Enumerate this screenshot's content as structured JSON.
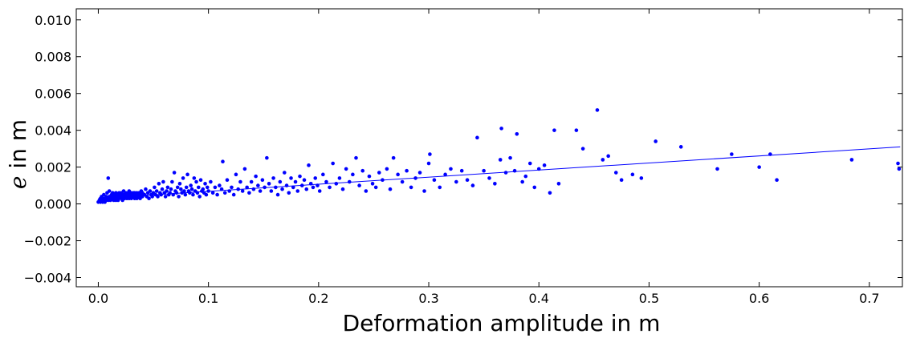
{
  "chart_data": {
    "type": "scatter",
    "title": "",
    "xlabel": "Deformation amplitude in m",
    "ylabel_var": "e",
    "ylabel_rest": " in m",
    "xlim": [
      -0.02,
      0.73
    ],
    "ylim": [
      -0.0045,
      0.0106
    ],
    "xticks": [
      0.0,
      0.1,
      0.2,
      0.3,
      0.4,
      0.5,
      0.6,
      0.7
    ],
    "xtick_labels": [
      "0.0",
      "0.1",
      "0.2",
      "0.3",
      "0.4",
      "0.5",
      "0.6",
      "0.7"
    ],
    "yticks": [
      -0.004,
      -0.002,
      0.0,
      0.002,
      0.004,
      0.006,
      0.008,
      0.01
    ],
    "ytick_labels": [
      "−0.004",
      "−0.002",
      "0.000",
      "0.002",
      "0.004",
      "0.006",
      "0.008",
      "0.010"
    ],
    "grid": false,
    "point_color": "#0000ff",
    "line_color": "#0000ff",
    "series": [
      {
        "kind": "points",
        "points": [
          [
            0.0,
            0.0001
          ],
          [
            0.001,
            0.0002
          ],
          [
            0.002,
            0.0003
          ],
          [
            0.002,
            0.0001
          ],
          [
            0.003,
            0.0002
          ],
          [
            0.003,
            0.0004
          ],
          [
            0.004,
            0.0001
          ],
          [
            0.004,
            0.0003
          ],
          [
            0.005,
            0.0002
          ],
          [
            0.005,
            0.0005
          ],
          [
            0.006,
            0.0001
          ],
          [
            0.006,
            0.0003
          ],
          [
            0.007,
            0.0004
          ],
          [
            0.007,
            0.0002
          ],
          [
            0.008,
            0.0006
          ],
          [
            0.008,
            0.0003
          ],
          [
            0.009,
            0.0002
          ],
          [
            0.009,
            0.0014
          ],
          [
            0.01,
            0.0004
          ],
          [
            0.01,
            0.0007
          ],
          [
            0.011,
            0.0003
          ],
          [
            0.011,
            0.0002
          ],
          [
            0.012,
            0.0005
          ],
          [
            0.012,
            0.0003
          ],
          [
            0.013,
            0.0004
          ],
          [
            0.013,
            0.0006
          ],
          [
            0.014,
            0.0002
          ],
          [
            0.014,
            0.0003
          ],
          [
            0.015,
            0.0005
          ],
          [
            0.015,
            0.0004
          ],
          [
            0.016,
            0.0002
          ],
          [
            0.016,
            0.0006
          ],
          [
            0.017,
            0.0003
          ],
          [
            0.017,
            0.0005
          ],
          [
            0.018,
            0.0004
          ],
          [
            0.018,
            0.0002
          ],
          [
            0.019,
            0.0006
          ],
          [
            0.019,
            0.0003
          ],
          [
            0.02,
            0.0004
          ],
          [
            0.02,
            0.0005
          ],
          [
            0.021,
            0.0003
          ],
          [
            0.021,
            0.0006
          ],
          [
            0.022,
            0.0004
          ],
          [
            0.022,
            0.0002
          ],
          [
            0.023,
            0.0005
          ],
          [
            0.023,
            0.0007
          ],
          [
            0.024,
            0.0003
          ],
          [
            0.024,
            0.0004
          ],
          [
            0.025,
            0.0006
          ],
          [
            0.025,
            0.0005
          ],
          [
            0.026,
            0.0003
          ],
          [
            0.026,
            0.0004
          ],
          [
            0.027,
            0.0006
          ],
          [
            0.027,
            0.0005
          ],
          [
            0.028,
            0.0003
          ],
          [
            0.028,
            0.0007
          ],
          [
            0.029,
            0.0004
          ],
          [
            0.029,
            0.0005
          ],
          [
            0.03,
            0.0006
          ],
          [
            0.03,
            0.0003
          ],
          [
            0.031,
            0.0004
          ],
          [
            0.031,
            0.0005
          ],
          [
            0.032,
            0.0006
          ],
          [
            0.032,
            0.0004
          ],
          [
            0.033,
            0.0003
          ],
          [
            0.033,
            0.0006
          ],
          [
            0.034,
            0.0005
          ],
          [
            0.034,
            0.0004
          ],
          [
            0.035,
            0.0006
          ],
          [
            0.035,
            0.0003
          ],
          [
            0.036,
            0.0004
          ],
          [
            0.036,
            0.0005
          ],
          [
            0.037,
            0.0006
          ],
          [
            0.037,
            0.0004
          ],
          [
            0.038,
            0.0005
          ],
          [
            0.038,
            0.0003
          ],
          [
            0.039,
            0.0007
          ],
          [
            0.039,
            0.0005
          ],
          [
            0.04,
            0.0004
          ],
          [
            0.04,
            0.0006
          ],
          [
            0.042,
            0.0005
          ],
          [
            0.043,
            0.0008
          ],
          [
            0.044,
            0.0004
          ],
          [
            0.045,
            0.0006
          ],
          [
            0.046,
            0.0003
          ],
          [
            0.047,
            0.0007
          ],
          [
            0.048,
            0.0005
          ],
          [
            0.049,
            0.0004
          ],
          [
            0.05,
            0.0006
          ],
          [
            0.051,
            0.0009
          ],
          [
            0.052,
            0.0005
          ],
          [
            0.053,
            0.0007
          ],
          [
            0.054,
            0.0004
          ],
          [
            0.055,
            0.0011
          ],
          [
            0.056,
            0.0006
          ],
          [
            0.057,
            0.0005
          ],
          [
            0.058,
            0.0008
          ],
          [
            0.059,
            0.0012
          ],
          [
            0.06,
            0.0006
          ],
          [
            0.061,
            0.0004
          ],
          [
            0.062,
            0.0007
          ],
          [
            0.063,
            0.0009
          ],
          [
            0.064,
            0.0005
          ],
          [
            0.065,
            0.0006
          ],
          [
            0.066,
            0.0008
          ],
          [
            0.067,
            0.0012
          ],
          [
            0.068,
            0.0005
          ],
          [
            0.069,
            0.0017
          ],
          [
            0.07,
            0.0007
          ],
          [
            0.071,
            0.0006
          ],
          [
            0.072,
            0.0009
          ],
          [
            0.073,
            0.0004
          ],
          [
            0.074,
            0.0011
          ],
          [
            0.075,
            0.0008
          ],
          [
            0.076,
            0.0006
          ],
          [
            0.077,
            0.0014
          ],
          [
            0.078,
            0.0007
          ],
          [
            0.079,
            0.0005
          ],
          [
            0.08,
            0.0009
          ],
          [
            0.081,
            0.0016
          ],
          [
            0.082,
            0.0007
          ],
          [
            0.083,
            0.0006
          ],
          [
            0.084,
            0.001
          ],
          [
            0.085,
            0.0008
          ],
          [
            0.086,
            0.0005
          ],
          [
            0.087,
            0.0014
          ],
          [
            0.088,
            0.0007
          ],
          [
            0.089,
            0.0012
          ],
          [
            0.09,
            0.0006
          ],
          [
            0.091,
            0.0009
          ],
          [
            0.092,
            0.0004
          ],
          [
            0.093,
            0.0013
          ],
          [
            0.094,
            0.0007
          ],
          [
            0.095,
            0.0008
          ],
          [
            0.096,
            0.0006
          ],
          [
            0.097,
            0.0011
          ],
          [
            0.098,
            0.0005
          ],
          [
            0.099,
            0.0009
          ],
          [
            0.1,
            0.0007
          ],
          [
            0.102,
            0.0012
          ],
          [
            0.104,
            0.0006
          ],
          [
            0.106,
            0.0009
          ],
          [
            0.108,
            0.0005
          ],
          [
            0.11,
            0.001
          ],
          [
            0.112,
            0.0008
          ],
          [
            0.113,
            0.0023
          ],
          [
            0.115,
            0.0006
          ],
          [
            0.117,
            0.0013
          ],
          [
            0.119,
            0.0007
          ],
          [
            0.121,
            0.0009
          ],
          [
            0.123,
            0.0005
          ],
          [
            0.125,
            0.0016
          ],
          [
            0.127,
            0.0008
          ],
          [
            0.129,
            0.0012
          ],
          [
            0.131,
            0.0007
          ],
          [
            0.133,
            0.0019
          ],
          [
            0.135,
            0.0009
          ],
          [
            0.137,
            0.0006
          ],
          [
            0.139,
            0.0012
          ],
          [
            0.141,
            0.0008
          ],
          [
            0.143,
            0.0015
          ],
          [
            0.145,
            0.001
          ],
          [
            0.147,
            0.0007
          ],
          [
            0.149,
            0.0013
          ],
          [
            0.151,
            0.0009
          ],
          [
            0.153,
            0.0025
          ],
          [
            0.155,
            0.0011
          ],
          [
            0.157,
            0.0007
          ],
          [
            0.159,
            0.0014
          ],
          [
            0.161,
            0.0009
          ],
          [
            0.163,
            0.0005
          ],
          [
            0.165,
            0.0012
          ],
          [
            0.167,
            0.0008
          ],
          [
            0.169,
            0.0017
          ],
          [
            0.171,
            0.001
          ],
          [
            0.173,
            0.0006
          ],
          [
            0.175,
            0.0014
          ],
          [
            0.177,
            0.0009
          ],
          [
            0.179,
            0.0012
          ],
          [
            0.181,
            0.0007
          ],
          [
            0.183,
            0.0015
          ],
          [
            0.185,
            0.001
          ],
          [
            0.187,
            0.0013
          ],
          [
            0.189,
            0.0008
          ],
          [
            0.191,
            0.0021
          ],
          [
            0.193,
            0.0011
          ],
          [
            0.195,
            0.0009
          ],
          [
            0.197,
            0.0014
          ],
          [
            0.199,
            0.001
          ],
          [
            0.201,
            0.0007
          ],
          [
            0.204,
            0.0016
          ],
          [
            0.207,
            0.0012
          ],
          [
            0.21,
            0.0009
          ],
          [
            0.213,
            0.0022
          ],
          [
            0.216,
            0.0011
          ],
          [
            0.219,
            0.0014
          ],
          [
            0.222,
            0.0008
          ],
          [
            0.225,
            0.0019
          ],
          [
            0.228,
            0.0012
          ],
          [
            0.231,
            0.0016
          ],
          [
            0.234,
            0.0025
          ],
          [
            0.237,
            0.001
          ],
          [
            0.24,
            0.0018
          ],
          [
            0.243,
            0.0007
          ],
          [
            0.246,
            0.0015
          ],
          [
            0.249,
            0.0011
          ],
          [
            0.252,
            0.0009
          ],
          [
            0.255,
            0.0017
          ],
          [
            0.258,
            0.0013
          ],
          [
            0.262,
            0.0019
          ],
          [
            0.265,
            0.0008
          ],
          [
            0.268,
            0.0025
          ],
          [
            0.272,
            0.0016
          ],
          [
            0.276,
            0.0012
          ],
          [
            0.28,
            0.0018
          ],
          [
            0.284,
            0.0009
          ],
          [
            0.288,
            0.0014
          ],
          [
            0.292,
            0.0017
          ],
          [
            0.296,
            0.0007
          ],
          [
            0.3,
            0.0022
          ],
          [
            0.301,
            0.0027
          ],
          [
            0.305,
            0.0013
          ],
          [
            0.31,
            0.0009
          ],
          [
            0.315,
            0.0016
          ],
          [
            0.32,
            0.0019
          ],
          [
            0.325,
            0.0012
          ],
          [
            0.33,
            0.0018
          ],
          [
            0.335,
            0.0013
          ],
          [
            0.34,
            0.001
          ],
          [
            0.344,
            0.0036
          ],
          [
            0.35,
            0.0018
          ],
          [
            0.355,
            0.0014
          ],
          [
            0.36,
            0.0011
          ],
          [
            0.365,
            0.0024
          ],
          [
            0.366,
            0.0041
          ],
          [
            0.37,
            0.0017
          ],
          [
            0.374,
            0.0025
          ],
          [
            0.378,
            0.0018
          ],
          [
            0.38,
            0.0038
          ],
          [
            0.385,
            0.0012
          ],
          [
            0.388,
            0.0015
          ],
          [
            0.392,
            0.0022
          ],
          [
            0.396,
            0.0009
          ],
          [
            0.4,
            0.0019
          ],
          [
            0.405,
            0.0021
          ],
          [
            0.41,
            0.0006
          ],
          [
            0.414,
            0.004
          ],
          [
            0.418,
            0.0011
          ],
          [
            0.434,
            0.004
          ],
          [
            0.44,
            0.003
          ],
          [
            0.453,
            0.0051
          ],
          [
            0.458,
            0.0024
          ],
          [
            0.463,
            0.0026
          ],
          [
            0.47,
            0.0017
          ],
          [
            0.475,
            0.0013
          ],
          [
            0.485,
            0.0016
          ],
          [
            0.493,
            0.0014
          ],
          [
            0.506,
            0.0034
          ],
          [
            0.529,
            0.0031
          ],
          [
            0.562,
            0.0019
          ],
          [
            0.575,
            0.0027
          ],
          [
            0.6,
            0.002
          ],
          [
            0.61,
            0.0027
          ],
          [
            0.616,
            0.0013
          ],
          [
            0.684,
            0.0024
          ],
          [
            0.726,
            0.0022
          ],
          [
            0.727,
            0.0019
          ]
        ]
      },
      {
        "kind": "fit-line",
        "points": [
          [
            0.0,
            0.0003
          ],
          [
            0.728,
            0.0031
          ]
        ]
      }
    ]
  }
}
